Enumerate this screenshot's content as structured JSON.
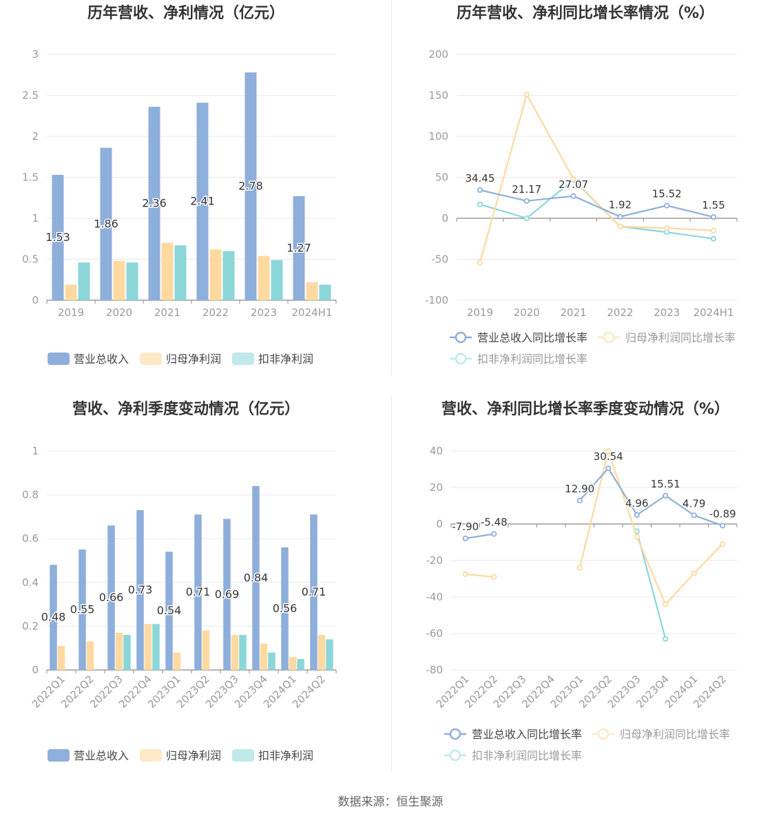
{
  "colors": {
    "revenue": "#8eaedb",
    "net_profit": "#fed9a0",
    "deducted_profit": "#8bd6d9",
    "grid": "#e6e8ee",
    "axis": "#999999",
    "label": "#333333",
    "title": "#333333"
  },
  "source": "数据来源：恒生聚源",
  "chart_data": [
    {
      "id": "annual-bar",
      "type": "bar",
      "title": "历年营收、净利情况（亿元）",
      "categories": [
        "2019",
        "2020",
        "2021",
        "2022",
        "2023",
        "2024H1"
      ],
      "ylim": [
        0,
        3
      ],
      "yticks": [
        "0",
        "0.5",
        "1",
        "1.5",
        "2",
        "2.5",
        "3"
      ],
      "series": [
        {
          "name": "营业总收入",
          "values": [
            1.53,
            1.86,
            2.36,
            2.41,
            2.78,
            1.27
          ],
          "labels": [
            "1.53",
            "1.86",
            "2.36",
            "2.41",
            "2.78",
            "1.27"
          ]
        },
        {
          "name": "归母净利润",
          "values": [
            0.19,
            0.48,
            0.7,
            0.62,
            0.54,
            0.22
          ]
        },
        {
          "name": "扣非净利润",
          "values": [
            0.46,
            0.46,
            0.67,
            0.6,
            0.49,
            0.19
          ]
        }
      ],
      "legend_position": "bottom",
      "grid": true
    },
    {
      "id": "annual-line",
      "type": "line",
      "title": "历年营收、净利同比增长率情况（%）",
      "categories": [
        "2019",
        "2020",
        "2021",
        "2022",
        "2023",
        "2024H1"
      ],
      "ylim": [
        -100,
        200
      ],
      "yticks": [
        "-100",
        "-50",
        "0",
        "50",
        "100",
        "150",
        "200"
      ],
      "series": [
        {
          "name": "营业总收入同比增长率",
          "values": [
            34.45,
            21.17,
            27.07,
            1.92,
            15.52,
            1.55
          ],
          "labels": [
            "34.45",
            "21.17",
            "27.07",
            "1.92",
            "15.52",
            "1.55"
          ]
        },
        {
          "name": "归母净利润同比增长率",
          "values": [
            -54,
            151,
            48,
            -10,
            -12,
            -15
          ]
        },
        {
          "name": "扣非净利润同比增长率",
          "values": [
            17,
            0,
            47,
            -10,
            -17,
            -25
          ]
        }
      ],
      "legend_position": "bottom",
      "grid": true
    },
    {
      "id": "quarterly-bar",
      "type": "bar",
      "title": "营收、净利季度变动情况（亿元）",
      "categories": [
        "2022Q1",
        "2022Q2",
        "2022Q3",
        "2022Q4",
        "2023Q1",
        "2023Q2",
        "2023Q3",
        "2023Q4",
        "2024Q1",
        "2024Q2"
      ],
      "ylim": [
        0,
        1
      ],
      "yticks": [
        "0",
        "0.2",
        "0.4",
        "0.6",
        "0.8",
        "1"
      ],
      "series": [
        {
          "name": "营业总收入",
          "values": [
            0.48,
            0.55,
            0.66,
            0.73,
            0.54,
            0.71,
            0.69,
            0.84,
            0.56,
            0.71
          ],
          "labels": [
            "0.48",
            "0.55",
            "0.66",
            "0.73",
            "0.54",
            "0.71",
            "0.69",
            "0.84",
            "0.56",
            "0.71"
          ]
        },
        {
          "name": "归母净利润",
          "values": [
            0.11,
            0.13,
            0.17,
            0.21,
            0.08,
            0.18,
            0.16,
            0.12,
            0.06,
            0.16
          ]
        },
        {
          "name": "扣非净利润",
          "values": [
            null,
            null,
            0.16,
            0.21,
            null,
            null,
            0.16,
            0.08,
            0.05,
            0.14
          ]
        }
      ],
      "legend_position": "bottom",
      "grid": true
    },
    {
      "id": "quarterly-line",
      "type": "line",
      "title": "营收、净利同比增长率季度变动情况（%）",
      "categories": [
        "2022Q1",
        "2022Q2",
        "2022Q3",
        "2022Q4",
        "2023Q1",
        "2023Q2",
        "2023Q3",
        "2023Q4",
        "2024Q1",
        "2024Q2"
      ],
      "ylim": [
        -80,
        40
      ],
      "yticks": [
        "-80",
        "-60",
        "-40",
        "-20",
        "0",
        "20",
        "40"
      ],
      "series": [
        {
          "name": "营业总收入同比增长率",
          "values": [
            -7.9,
            -5.48,
            null,
            null,
            12.9,
            30.54,
            4.96,
            15.51,
            4.79,
            -0.89
          ],
          "labels": [
            "-7.90",
            "-5.48",
            "",
            "",
            "12.90",
            "30.54",
            "4.96",
            "15.51",
            "4.79",
            "-0.89"
          ]
        },
        {
          "name": "归母净利润同比增长率",
          "values": [
            -27.5,
            -29,
            null,
            null,
            -24,
            40,
            -7,
            -44,
            -27,
            -11
          ]
        },
        {
          "name": "扣非净利润同比增长率",
          "values": [
            null,
            null,
            null,
            null,
            null,
            null,
            -4,
            -63,
            null,
            null
          ]
        }
      ],
      "legend_position": "bottom",
      "grid": true
    }
  ]
}
